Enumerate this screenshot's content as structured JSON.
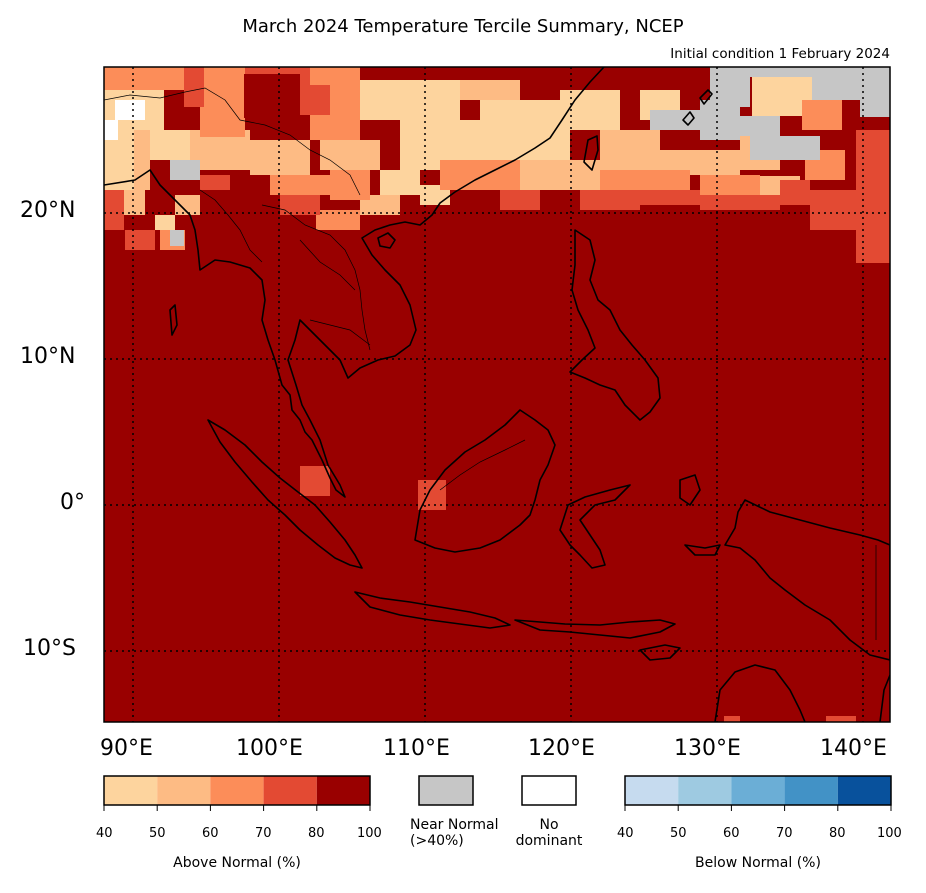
{
  "title": "March 2024 Temperature Tercile Summary, NCEP",
  "subtitle": "Initial condition 1 February 2024",
  "lat_labels": [
    "20°N",
    "10°N",
    "0°",
    "10°S"
  ],
  "lon_labels": [
    "90°E",
    "100°E",
    "110°E",
    "120°E",
    "130°E",
    "140°E"
  ],
  "legend": {
    "above": {
      "label": "Above Normal (%)",
      "ticks": [
        "40",
        "50",
        "60",
        "70",
        "80",
        "100"
      ],
      "colors": [
        "#fdd49e",
        "#fdbb84",
        "#fc8d59",
        "#e34a33",
        "#990000"
      ]
    },
    "near": {
      "label_line1": "Near Normal",
      "label_line2": "(>40%)",
      "color": "#c6c6c6"
    },
    "none": {
      "label_line1": "No",
      "label_line2": "dominant",
      "color": "#ffffff"
    },
    "below": {
      "label": "Below Normal (%)",
      "ticks": [
        "40",
        "50",
        "60",
        "70",
        "80",
        "100"
      ],
      "colors": [
        "#c6dbef",
        "#9ecae1",
        "#6baed6",
        "#4292c6",
        "#08519c"
      ]
    }
  }
}
